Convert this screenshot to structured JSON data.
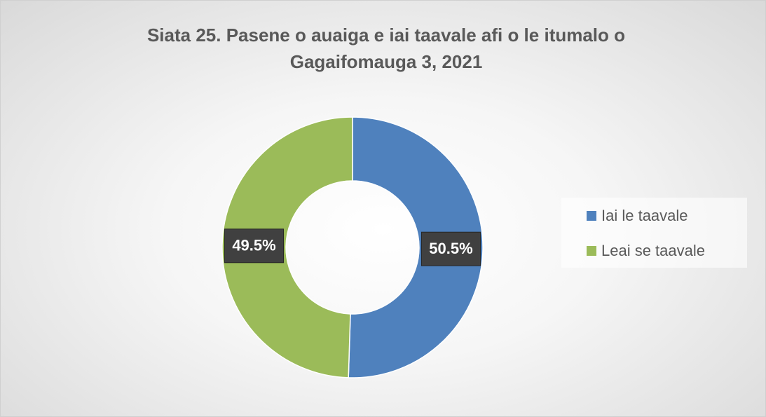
{
  "chart_data": {
    "type": "donut",
    "title": "Siata 25. Pasene o auaiga e iai taavale afi o le itumalo o Gagaifomauga 3, 2021",
    "categories": [
      "Iai le taavale",
      "Leai se taavale"
    ],
    "values": [
      50.5,
      49.5
    ],
    "value_labels": [
      "50.5%",
      "49.5%"
    ],
    "colors": [
      "#4f81bd",
      "#9bbb59"
    ],
    "legend": "right"
  }
}
